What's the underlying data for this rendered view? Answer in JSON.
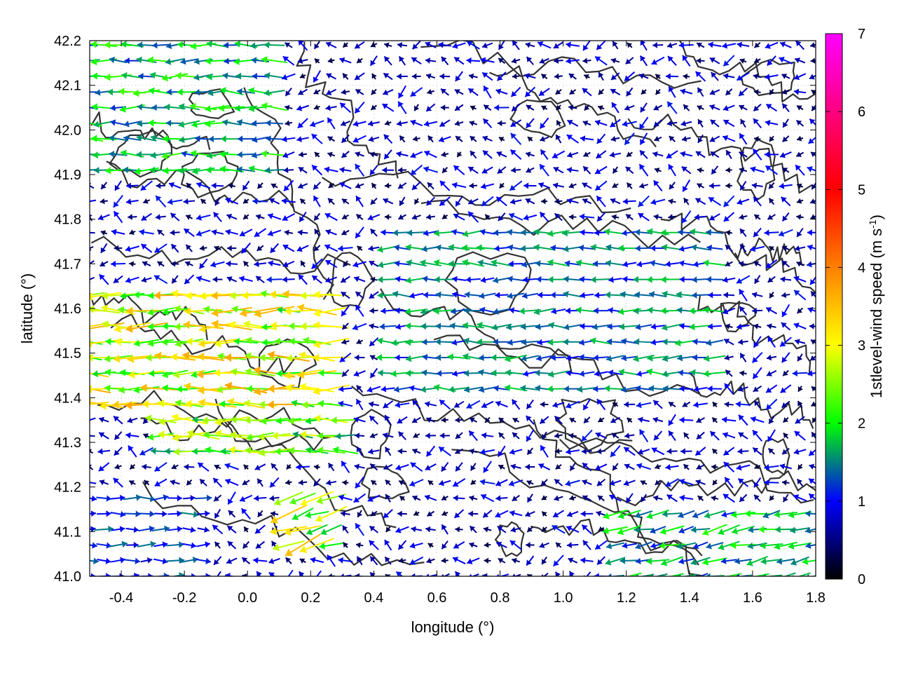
{
  "chart_data": {
    "type": "vector field with contour overlay",
    "xlabel": "longitude (°)",
    "ylabel": "latitude (°)",
    "colorbar_label": "1stlevel-wind speed (m s",
    "colorbar_label_sup": "-1",
    "colorbar_label_end": ")",
    "xlim": [
      -0.5,
      1.8
    ],
    "ylim": [
      41.0,
      42.2
    ],
    "x_ticks": [
      -0.4,
      -0.2,
      0.0,
      0.2,
      0.4,
      0.6,
      0.8,
      1.0,
      1.2,
      1.4,
      1.6,
      1.8
    ],
    "y_ticks": [
      41.0,
      41.1,
      41.2,
      41.3,
      41.4,
      41.5,
      41.6,
      41.7,
      41.8,
      41.9,
      42.0,
      42.1,
      42.2
    ],
    "x_tick_labels": [
      "-0.4",
      "-0.2",
      "0.0",
      "0.2",
      "0.4",
      "0.6",
      "0.8",
      "1.0",
      "1.2",
      "1.4",
      "1.6",
      "1.8"
    ],
    "y_tick_labels": [
      "41.0",
      "41.1",
      "41.2",
      "41.3",
      "41.4",
      "41.5",
      "41.6",
      "41.7",
      "41.8",
      "41.9",
      "42.0",
      "42.1",
      "42.2"
    ],
    "color_range": [
      0,
      7
    ],
    "color_ticks": [
      "0",
      "1",
      "2",
      "3",
      "4",
      "5",
      "6",
      "7"
    ],
    "colormap": [
      "#000000",
      "#0000ff",
      "#00ff00",
      "#ffff00",
      "#ff8000",
      "#ff0000",
      "#ff00ff"
    ],
    "grid": true,
    "grid_style": "dotted",
    "contour_color": "#333333",
    "wind_regions": [
      {
        "lon": [
          -0.5,
          0.3
        ],
        "lat": [
          41.35,
          41.65
        ],
        "speed": 3.6,
        "dir_deg": 180
      },
      {
        "lon": [
          -0.3,
          0.35
        ],
        "lat": [
          41.25,
          41.35
        ],
        "speed": 3.0,
        "dir_deg": 180
      },
      {
        "lon": [
          -0.5,
          0.1
        ],
        "lat": [
          41.9,
          42.2
        ],
        "speed": 2.2,
        "dir_deg": 180
      },
      {
        "lon": [
          0.4,
          1.5
        ],
        "lat": [
          41.4,
          41.8
        ],
        "speed": 1.8,
        "dir_deg": 180
      },
      {
        "lon": [
          1.15,
          1.8
        ],
        "lat": [
          41.0,
          41.15
        ],
        "speed": 2.1,
        "dir_deg": 190
      },
      {
        "lon": [
          -0.5,
          -0.1
        ],
        "lat": [
          41.0,
          41.2
        ],
        "speed": 1.5,
        "dir_deg": 0
      },
      {
        "lon": [
          0.1,
          0.3
        ],
        "lat": [
          41.05,
          41.2
        ],
        "speed": 3.5,
        "dir_deg": 200
      }
    ]
  }
}
